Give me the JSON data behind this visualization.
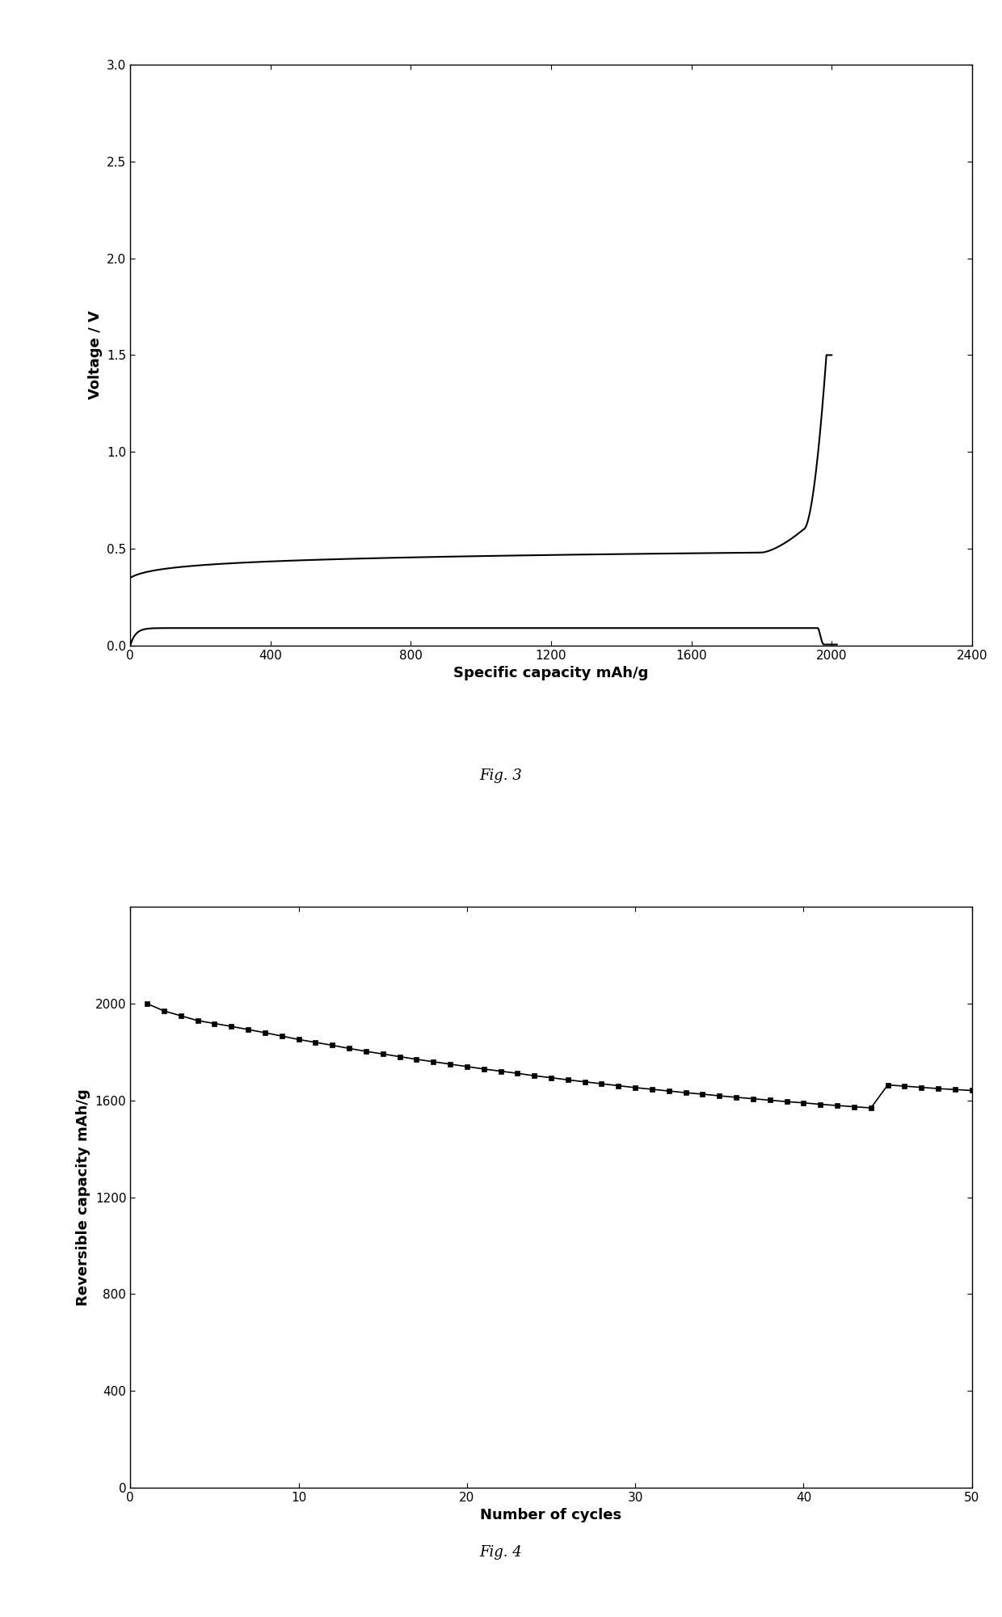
{
  "fig3": {
    "title": "Fig. 3",
    "xlabel": "Specific capacity mAh/g",
    "ylabel": "Voltage / V",
    "xlim": [
      0,
      2400
    ],
    "ylim": [
      0.0,
      3.0
    ],
    "xticks": [
      0,
      400,
      800,
      1200,
      1600,
      2000,
      2400
    ],
    "yticks": [
      0.0,
      0.5,
      1.0,
      1.5,
      2.0,
      2.5,
      3.0
    ],
    "line_color": "#000000",
    "line_width": 1.5
  },
  "fig4": {
    "title": "Fig. 4",
    "xlabel": "Number of cycles",
    "ylabel": "Reversible capacity mAh/g",
    "xlim": [
      0,
      50
    ],
    "ylim": [
      0,
      2400
    ],
    "xticks": [
      0,
      10,
      20,
      30,
      40,
      50
    ],
    "yticks": [
      0,
      400,
      800,
      1200,
      1600,
      2000
    ],
    "line_color": "#000000",
    "marker": "s",
    "marker_size": 4,
    "line_width": 1.2,
    "cycles_x": [
      1,
      2,
      3,
      4,
      5,
      6,
      7,
      8,
      9,
      10,
      11,
      12,
      13,
      14,
      15,
      16,
      17,
      18,
      19,
      20,
      21,
      22,
      23,
      24,
      25,
      26,
      27,
      28,
      29,
      30,
      31,
      32,
      33,
      34,
      35,
      36,
      37,
      38,
      39,
      40,
      41,
      42,
      43,
      44,
      45,
      46,
      47,
      48,
      49,
      50
    ],
    "cycles_y": [
      2000,
      1970,
      1950,
      1930,
      1918,
      1906,
      1893,
      1880,
      1866,
      1852,
      1840,
      1828,
      1815,
      1803,
      1792,
      1781,
      1770,
      1760,
      1750,
      1740,
      1730,
      1721,
      1712,
      1702,
      1694,
      1685,
      1677,
      1669,
      1661,
      1653,
      1646,
      1639,
      1632,
      1626,
      1619,
      1613,
      1607,
      1601,
      1595,
      1590,
      1584,
      1579,
      1574,
      1669,
      1664,
      1659,
      1654,
      1649,
      1645,
      1641
    ]
  }
}
